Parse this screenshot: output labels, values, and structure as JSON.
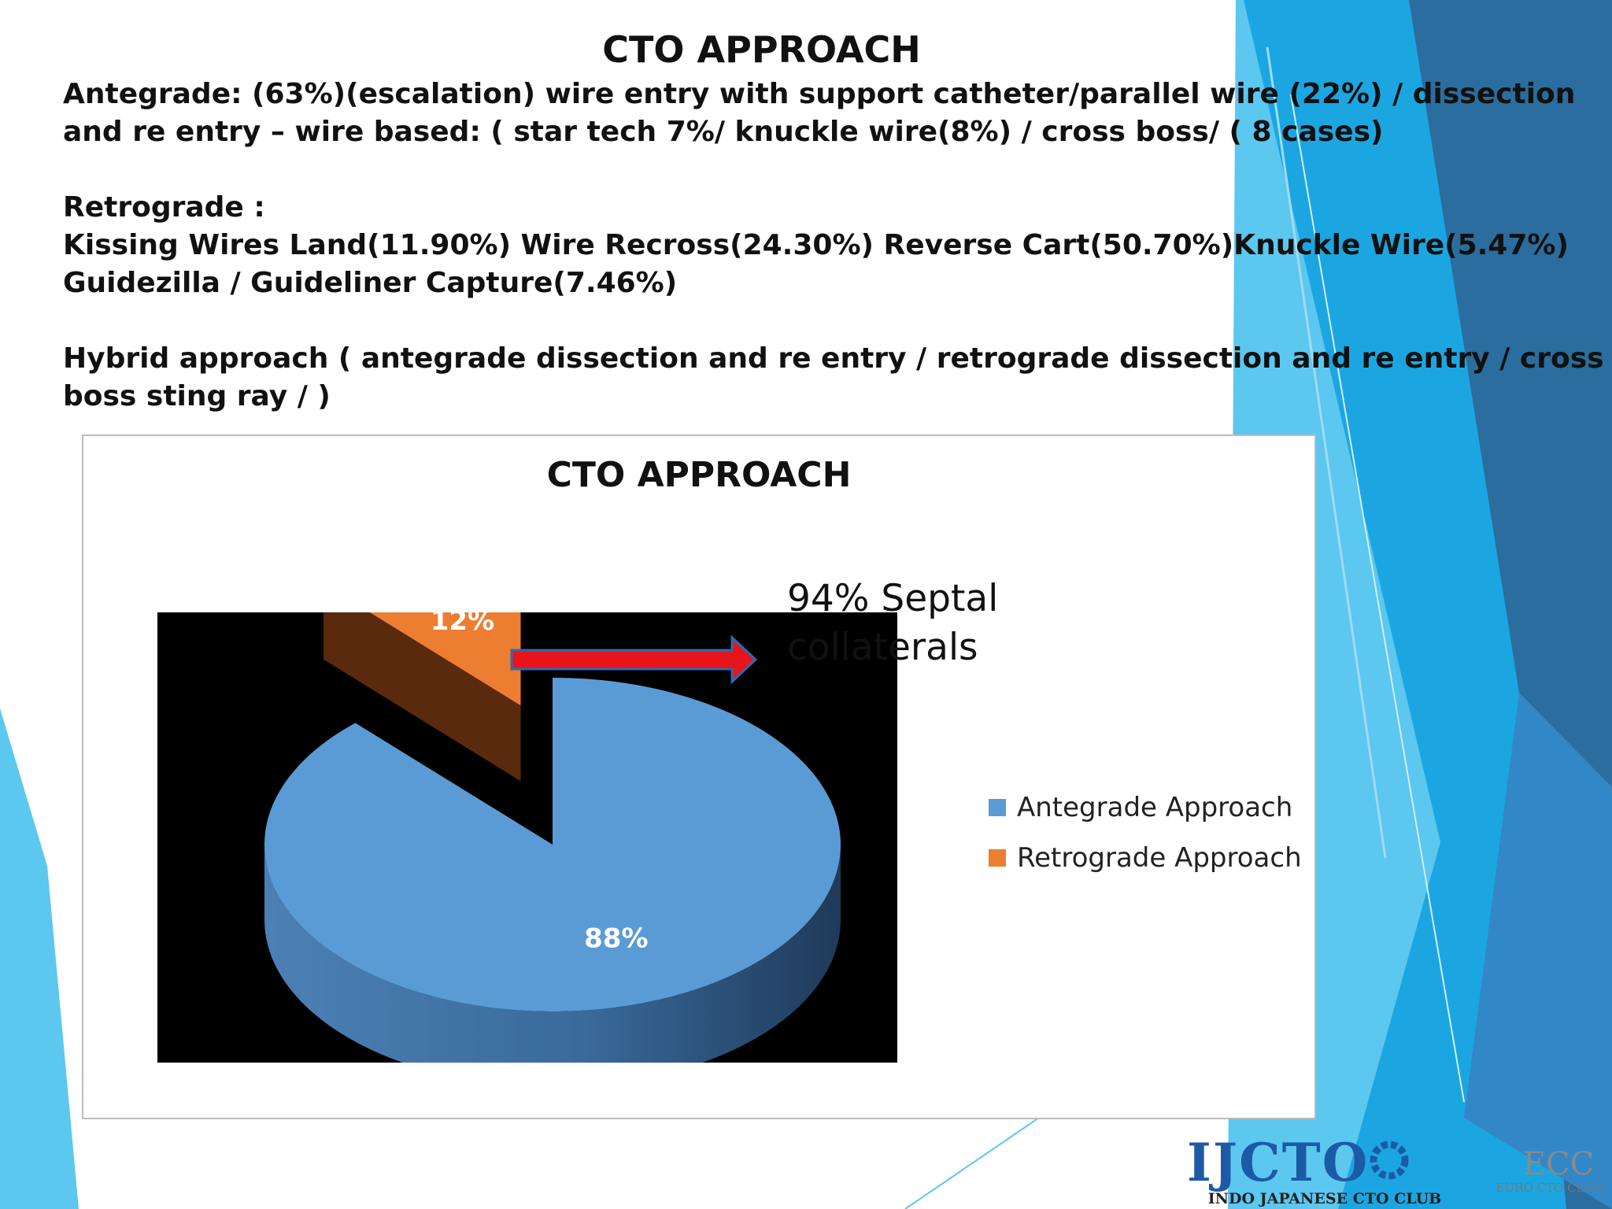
{
  "slide": {
    "title": "CTO APPROACH",
    "lines": [
      "Antegrade: (63%)(escalation) wire entry with support catheter/parallel wire (22%) / dissection",
      "and re entry – wire based: ( star tech   7%/ knuckle wire(8%) / cross boss/ ( 8 cases)",
      "Retrograde :",
      "Kissing Wires Land(11.90%) Wire Recross(24.30%) Reverse Cart(50.70%)Knuckle Wire(5.47%)",
      "Guidezilla / Guideliner Capture(7.46%)",
      "Hybrid approach ( antegrade dissection and re entry / retrograde dissection and re entry / cross",
      "boss sting ray / )"
    ]
  },
  "chart_data": {
    "type": "pie",
    "title": "CTO APPROACH",
    "categories": [
      "Antegrade Approach",
      "Retrograde Approach"
    ],
    "values": [
      88,
      12
    ],
    "data_labels": [
      "88%",
      "12%"
    ],
    "colors": [
      "#5b9bd5",
      "#ed7d31"
    ],
    "legend_position": "right",
    "annotation": {
      "text_line1": "94% Septal",
      "text_line2": "collaterals",
      "arrow_color": "#e8141c"
    }
  },
  "logos": {
    "ijcto_wordmark": "IJCTO",
    "ijcto_caption": "INDO JAPANESE CTO CLUB",
    "euro_wordmark": "ECC",
    "euro_caption": "EURO CTO CLUB"
  },
  "theme": {
    "accent_blue": "#1aa3e0",
    "dark_blue": "#1d5f8f",
    "light_blue": "#5dc8f0"
  }
}
